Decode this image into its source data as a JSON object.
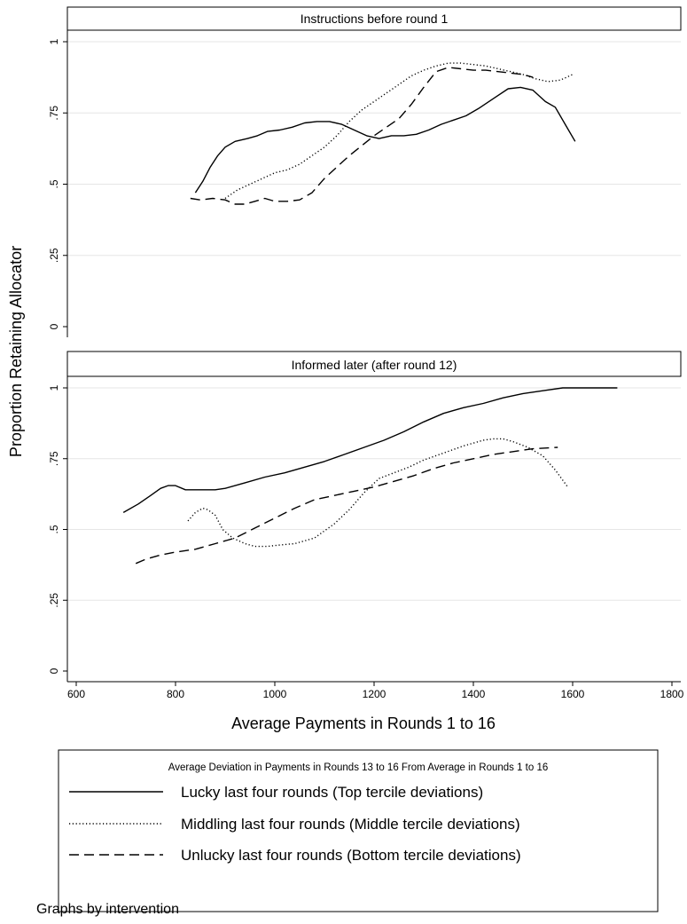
{
  "chart_data": {
    "type": "line",
    "ylabel": "Proportion Retaining Allocator",
    "xlabel": "Average Payments in Rounds 1 to 16",
    "xlim": [
      600,
      1800
    ],
    "ylim": [
      0,
      1
    ],
    "x_ticks": [
      "600",
      "800",
      "1000",
      "1200",
      "1400",
      "1600",
      "1800"
    ],
    "y_ticks": [
      "0",
      ".25",
      ".5",
      ".75",
      "1"
    ],
    "grid": true,
    "legend": {
      "title": "Average Deviation in Payments in Rounds 13 to 16 From Average in Rounds 1 to 16",
      "position": "bottom",
      "entries": [
        {
          "label": "Lucky last four rounds (Top tercile deviations)",
          "style": "solid"
        },
        {
          "label": "Middling last four rounds (Middle tercile deviations)",
          "style": "dotted"
        },
        {
          "label": "Unlucky last four rounds (Bottom tercile deviations)",
          "style": "dashed"
        }
      ]
    },
    "note": "Graphs by intervention",
    "panels": [
      {
        "title": "Instructions  before round 1",
        "series": [
          {
            "name": "Lucky last four rounds (Top tercile deviations)",
            "style": "solid",
            "x": [
              840,
              855,
              870,
              885,
              900,
              920,
              945,
              965,
              985,
              1010,
              1035,
              1060,
              1085,
              1110,
              1135,
              1160,
              1185,
              1210,
              1235,
              1260,
              1285,
              1310,
              1335,
              1360,
              1385,
              1410,
              1440,
              1470,
              1495,
              1520,
              1545,
              1565,
              1585,
              1605
            ],
            "y": [
              0.47,
              0.51,
              0.56,
              0.6,
              0.63,
              0.65,
              0.66,
              0.67,
              0.685,
              0.69,
              0.7,
              0.715,
              0.72,
              0.72,
              0.71,
              0.69,
              0.67,
              0.66,
              0.67,
              0.67,
              0.675,
              0.69,
              0.71,
              0.725,
              0.74,
              0.765,
              0.8,
              0.835,
              0.84,
              0.83,
              0.79,
              0.77,
              0.71,
              0.65
            ]
          },
          {
            "name": "Middling last four rounds (Middle tercile deviations)",
            "style": "dotted",
            "x": [
              900,
              925,
              950,
              975,
              1000,
              1025,
              1050,
              1075,
              1100,
              1125,
              1150,
              1175,
              1200,
              1225,
              1250,
              1275,
              1300,
              1325,
              1350,
              1375,
              1400,
              1425,
              1450,
              1475,
              1500,
              1525,
              1550,
              1575,
              1600
            ],
            "y": [
              0.45,
              0.48,
              0.5,
              0.52,
              0.54,
              0.55,
              0.57,
              0.6,
              0.63,
              0.67,
              0.72,
              0.76,
              0.79,
              0.82,
              0.85,
              0.88,
              0.9,
              0.915,
              0.925,
              0.925,
              0.92,
              0.915,
              0.905,
              0.895,
              0.885,
              0.87,
              0.86,
              0.865,
              0.885
            ]
          },
          {
            "name": "Unlucky last four rounds (Bottom tercile deviations)",
            "style": "dashed",
            "x": [
              830,
              850,
              875,
              900,
              920,
              940,
              960,
              980,
              1000,
              1025,
              1050,
              1075,
              1100,
              1125,
              1150,
              1175,
              1200,
              1225,
              1250,
              1275,
              1300,
              1325,
              1350,
              1375,
              1400,
              1425,
              1450,
              1475,
              1500,
              1520
            ],
            "y": [
              0.45,
              0.445,
              0.45,
              0.445,
              0.43,
              0.43,
              0.44,
              0.45,
              0.44,
              0.44,
              0.445,
              0.47,
              0.52,
              0.56,
              0.6,
              0.635,
              0.67,
              0.7,
              0.73,
              0.78,
              0.84,
              0.895,
              0.91,
              0.905,
              0.9,
              0.9,
              0.895,
              0.89,
              0.885,
              0.875
            ]
          }
        ]
      },
      {
        "title": "Informed later (after round 12)",
        "series": [
          {
            "name": "Lucky last four rounds (Top tercile deviations)",
            "style": "solid",
            "x": [
              695,
              725,
              750,
              770,
              785,
              800,
              820,
              850,
              880,
              900,
              940,
              980,
              1020,
              1060,
              1100,
              1140,
              1180,
              1220,
              1260,
              1300,
              1340,
              1380,
              1420,
              1460,
              1500,
              1540,
              1580,
              1620,
              1660,
              1690
            ],
            "y": [
              0.56,
              0.59,
              0.62,
              0.645,
              0.655,
              0.655,
              0.64,
              0.64,
              0.64,
              0.645,
              0.665,
              0.685,
              0.7,
              0.72,
              0.74,
              0.765,
              0.79,
              0.815,
              0.845,
              0.88,
              0.91,
              0.93,
              0.945,
              0.965,
              0.98,
              0.99,
              1.0,
              1.0,
              1.0,
              1.0
            ]
          },
          {
            "name": "Middling last four rounds (Middle tercile deviations)",
            "style": "dotted",
            "x": [
              825,
              840,
              855,
              865,
              880,
              895,
              915,
              940,
              960,
              985,
              1010,
              1040,
              1080,
              1120,
              1150,
              1180,
              1210,
              1240,
              1270,
              1300,
              1340,
              1380,
              1420,
              1440,
              1460,
              1480,
              1510,
              1540,
              1565,
              1590
            ],
            "y": [
              0.53,
              0.56,
              0.575,
              0.57,
              0.55,
              0.5,
              0.47,
              0.45,
              0.44,
              0.44,
              0.445,
              0.45,
              0.47,
              0.52,
              0.57,
              0.63,
              0.68,
              0.7,
              0.72,
              0.745,
              0.77,
              0.795,
              0.815,
              0.82,
              0.82,
              0.81,
              0.79,
              0.76,
              0.71,
              0.65
            ]
          },
          {
            "name": "Unlucky last four rounds (Bottom tercile deviations)",
            "style": "dashed",
            "x": [
              720,
              740,
              770,
              800,
              840,
              880,
              920,
              960,
              1000,
              1040,
              1080,
              1120,
              1160,
              1200,
              1240,
              1280,
              1320,
              1360,
              1400,
              1440,
              1480,
              1520,
              1570
            ],
            "y": [
              0.38,
              0.395,
              0.41,
              0.42,
              0.43,
              0.45,
              0.47,
              0.505,
              0.54,
              0.575,
              0.605,
              0.62,
              0.635,
              0.65,
              0.67,
              0.69,
              0.715,
              0.735,
              0.75,
              0.765,
              0.775,
              0.785,
              0.79
            ]
          }
        ]
      }
    ]
  }
}
